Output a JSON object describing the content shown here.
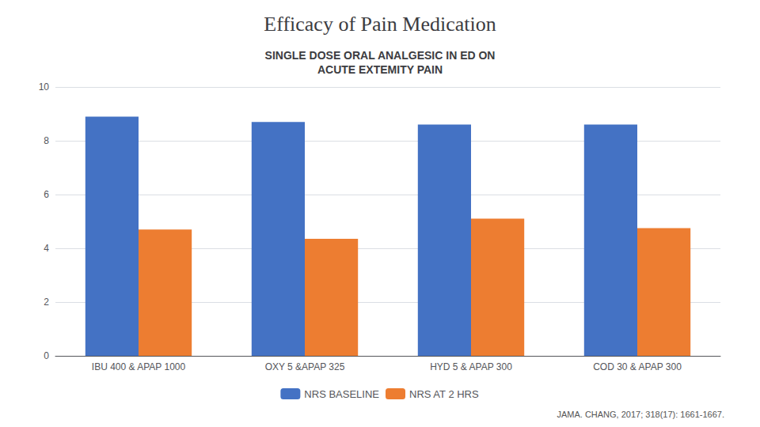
{
  "chart_data": {
    "type": "bar",
    "title": "Efficacy of Pain Medication",
    "subtitle": "SINGLE DOSE ORAL ANALGESIC IN ED ON\nACUTE EXTEMITY PAIN",
    "annotations": [
      "JAMA. CHANG, 2017; 318(17): 1661-1667."
    ],
    "categories": [
      "IBU 400 & APAP 1000",
      "OXY 5 &APAP 325",
      "HYD 5 & APAP 300",
      "COD 30 & APAP 300"
    ],
    "series": [
      {
        "name": "NRS BASELINE",
        "color": "#4472C4",
        "values": [
          8.9,
          8.7,
          8.6,
          8.6
        ]
      },
      {
        "name": "NRS AT 2 HRS",
        "color": "#ED7D31",
        "values": [
          4.7,
          4.35,
          5.1,
          4.75
        ]
      }
    ],
    "ylim": [
      0,
      10
    ],
    "yticks": [
      0,
      2,
      4,
      6,
      8,
      10
    ],
    "grid": true,
    "legend": "bottom"
  }
}
